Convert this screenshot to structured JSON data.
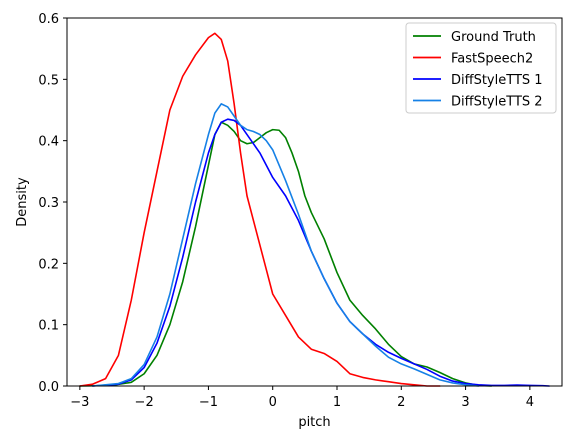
{
  "chart_data": {
    "type": "line",
    "title": "",
    "xlabel": "pitch",
    "ylabel": "Density",
    "xlim": [
      -3.2,
      4.5
    ],
    "ylim": [
      0,
      0.6
    ],
    "xticks": [
      -3,
      -2,
      -1,
      0,
      1,
      2,
      3,
      4
    ],
    "yticks": [
      0.0,
      0.1,
      0.2,
      0.3,
      0.4,
      0.5,
      0.6
    ],
    "xtick_labels": [
      "−3",
      "−2",
      "−1",
      "0",
      "1",
      "2",
      "3",
      "4"
    ],
    "ytick_labels": [
      "0.0",
      "0.1",
      "0.2",
      "0.3",
      "0.4",
      "0.5",
      "0.6"
    ],
    "grid": false,
    "legend_position": "top-right",
    "series": [
      {
        "name": "Ground Truth",
        "color": "#008000",
        "points": [
          [
            -3.0,
            0.0
          ],
          [
            -2.5,
            0.001
          ],
          [
            -2.2,
            0.006
          ],
          [
            -2.0,
            0.02
          ],
          [
            -1.8,
            0.05
          ],
          [
            -1.6,
            0.1
          ],
          [
            -1.4,
            0.17
          ],
          [
            -1.2,
            0.26
          ],
          [
            -1.0,
            0.36
          ],
          [
            -0.9,
            0.41
          ],
          [
            -0.8,
            0.43
          ],
          [
            -0.7,
            0.425
          ],
          [
            -0.6,
            0.415
          ],
          [
            -0.5,
            0.4
          ],
          [
            -0.4,
            0.395
          ],
          [
            -0.3,
            0.397
          ],
          [
            -0.2,
            0.405
          ],
          [
            -0.1,
            0.413
          ],
          [
            0.0,
            0.418
          ],
          [
            0.1,
            0.417
          ],
          [
            0.2,
            0.405
          ],
          [
            0.3,
            0.38
          ],
          [
            0.4,
            0.35
          ],
          [
            0.5,
            0.31
          ],
          [
            0.6,
            0.283
          ],
          [
            0.8,
            0.24
          ],
          [
            1.0,
            0.185
          ],
          [
            1.2,
            0.14
          ],
          [
            1.4,
            0.115
          ],
          [
            1.6,
            0.093
          ],
          [
            1.8,
            0.068
          ],
          [
            2.0,
            0.048
          ],
          [
            2.2,
            0.036
          ],
          [
            2.4,
            0.031
          ],
          [
            2.6,
            0.022
          ],
          [
            2.8,
            0.012
          ],
          [
            3.0,
            0.005
          ],
          [
            3.2,
            0.001
          ],
          [
            3.4,
            0.0
          ]
        ]
      },
      {
        "name": "FastSpeech2",
        "color": "#ff0000",
        "points": [
          [
            -3.0,
            0.0
          ],
          [
            -2.8,
            0.003
          ],
          [
            -2.6,
            0.012
          ],
          [
            -2.4,
            0.05
          ],
          [
            -2.2,
            0.14
          ],
          [
            -2.0,
            0.25
          ],
          [
            -1.8,
            0.35
          ],
          [
            -1.6,
            0.45
          ],
          [
            -1.4,
            0.505
          ],
          [
            -1.2,
            0.54
          ],
          [
            -1.0,
            0.568
          ],
          [
            -0.9,
            0.575
          ],
          [
            -0.8,
            0.565
          ],
          [
            -0.7,
            0.53
          ],
          [
            -0.6,
            0.46
          ],
          [
            -0.5,
            0.38
          ],
          [
            -0.4,
            0.31
          ],
          [
            -0.3,
            0.27
          ],
          [
            -0.2,
            0.23
          ],
          [
            -0.1,
            0.19
          ],
          [
            0.0,
            0.15
          ],
          [
            0.2,
            0.115
          ],
          [
            0.4,
            0.08
          ],
          [
            0.6,
            0.06
          ],
          [
            0.8,
            0.053
          ],
          [
            1.0,
            0.04
          ],
          [
            1.2,
            0.02
          ],
          [
            1.4,
            0.014
          ],
          [
            1.6,
            0.01
          ],
          [
            1.8,
            0.007
          ],
          [
            2.0,
            0.004
          ],
          [
            2.2,
            0.002
          ],
          [
            2.4,
            0.0
          ],
          [
            2.6,
            0.0
          ]
        ]
      },
      {
        "name": "DiffStyleTTS 1",
        "color": "#0000ff",
        "points": [
          [
            -2.8,
            0.0
          ],
          [
            -2.4,
            0.003
          ],
          [
            -2.2,
            0.01
          ],
          [
            -2.0,
            0.03
          ],
          [
            -1.8,
            0.07
          ],
          [
            -1.6,
            0.13
          ],
          [
            -1.4,
            0.21
          ],
          [
            -1.2,
            0.3
          ],
          [
            -1.0,
            0.38
          ],
          [
            -0.9,
            0.41
          ],
          [
            -0.8,
            0.43
          ],
          [
            -0.7,
            0.435
          ],
          [
            -0.6,
            0.433
          ],
          [
            -0.5,
            0.425
          ],
          [
            -0.4,
            0.41
          ],
          [
            -0.2,
            0.38
          ],
          [
            0.0,
            0.34
          ],
          [
            0.2,
            0.31
          ],
          [
            0.4,
            0.27
          ],
          [
            0.6,
            0.22
          ],
          [
            0.8,
            0.175
          ],
          [
            1.0,
            0.135
          ],
          [
            1.2,
            0.105
          ],
          [
            1.4,
            0.085
          ],
          [
            1.6,
            0.068
          ],
          [
            1.8,
            0.055
          ],
          [
            2.0,
            0.045
          ],
          [
            2.2,
            0.036
          ],
          [
            2.4,
            0.027
          ],
          [
            2.6,
            0.016
          ],
          [
            2.8,
            0.008
          ],
          [
            3.0,
            0.004
          ],
          [
            3.2,
            0.002
          ],
          [
            3.4,
            0.001
          ],
          [
            3.6,
            0.001
          ],
          [
            3.8,
            0.0015
          ],
          [
            4.0,
            0.001
          ],
          [
            4.2,
            0.0005
          ],
          [
            4.3,
            0.0
          ]
        ]
      },
      {
        "name": "DiffStyleTTS 2",
        "color": "#1681e6",
        "points": [
          [
            -2.8,
            0.0
          ],
          [
            -2.4,
            0.004
          ],
          [
            -2.2,
            0.012
          ],
          [
            -2.0,
            0.035
          ],
          [
            -1.8,
            0.08
          ],
          [
            -1.6,
            0.15
          ],
          [
            -1.4,
            0.24
          ],
          [
            -1.2,
            0.33
          ],
          [
            -1.0,
            0.41
          ],
          [
            -0.9,
            0.445
          ],
          [
            -0.8,
            0.46
          ],
          [
            -0.7,
            0.455
          ],
          [
            -0.6,
            0.44
          ],
          [
            -0.5,
            0.425
          ],
          [
            -0.4,
            0.418
          ],
          [
            -0.3,
            0.415
          ],
          [
            -0.2,
            0.41
          ],
          [
            -0.1,
            0.4
          ],
          [
            0.0,
            0.385
          ],
          [
            0.2,
            0.335
          ],
          [
            0.4,
            0.28
          ],
          [
            0.6,
            0.22
          ],
          [
            0.8,
            0.175
          ],
          [
            1.0,
            0.135
          ],
          [
            1.2,
            0.105
          ],
          [
            1.4,
            0.085
          ],
          [
            1.6,
            0.065
          ],
          [
            1.8,
            0.047
          ],
          [
            2.0,
            0.036
          ],
          [
            2.2,
            0.028
          ],
          [
            2.4,
            0.019
          ],
          [
            2.6,
            0.01
          ],
          [
            2.8,
            0.005
          ],
          [
            3.0,
            0.002
          ],
          [
            3.2,
            0.0
          ]
        ]
      }
    ]
  }
}
